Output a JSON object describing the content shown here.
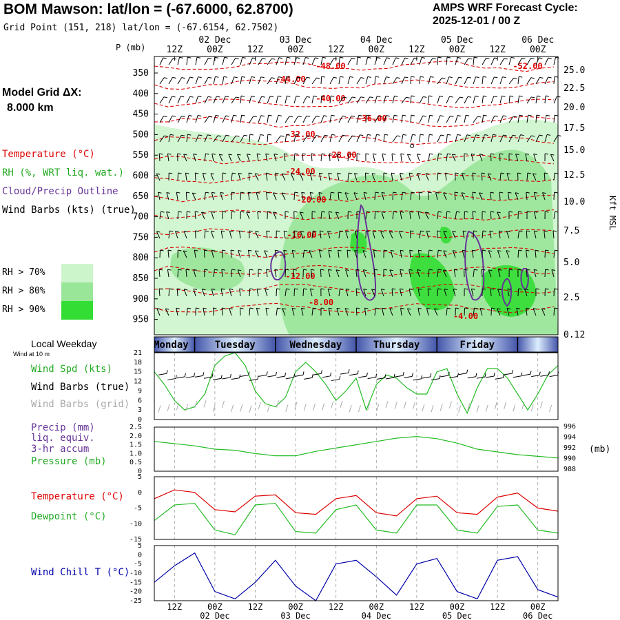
{
  "header": {
    "station_title": "BOM Mawson:  lat/lon = (-67.6000, 62.8700)",
    "grid_point": "Grid Point (151, 218) lat/lon = (-67.6154, 62.7502)",
    "cycle_title": "AMPS WRF Forecast Cycle:",
    "cycle_value": "2025-12-01 / 00  Z",
    "model_grid_label": "Model Grid ΔX:",
    "model_grid_value": "8.000 km"
  },
  "legend": {
    "temperature": "Temperature (°C)",
    "rh": "RH (%, WRT liq. wat.)",
    "cloud": "Cloud/Precip Outline",
    "wind_barbs": "Wind Barbs (kts) (true)",
    "rh70": "RH > 70%",
    "rh80": "RH > 80%",
    "rh90": "RH > 90%",
    "local_weekday": "Local Weekday",
    "wind_10m": "Wind at 10 m",
    "wind_spd": "Wind Spd (kts)",
    "wind_barbs_true": "Wind Barbs (true)",
    "wind_barbs_grid": "Wind Barbs (grid)",
    "precip": "Precip (mm)",
    "precip2": "liq. equiv.",
    "precip3": "3-hr accum",
    "pressure": "Pressure (mb)",
    "temperature2": "Temperature (°C)",
    "dewpoint": "Dewpoint (°C)",
    "windchill": "Wind Chill T (°C)"
  },
  "colors": {
    "temperature": "#dd0000",
    "rh": "#22bb22",
    "cloud": "#663399",
    "grid_barb": "#aaaaaa",
    "wind_chill": "#0000aa",
    "rh70": "#ccf5cc",
    "rh80": "#99e699",
    "rh90": "#33dd33",
    "weekday_bar": "#4455aa"
  },
  "chart_data": [
    {
      "type": "contour",
      "name": "cross-section",
      "p_label": "P (mb)",
      "right_label": "Kft MSL",
      "pressure_ticks": [
        "350",
        "400",
        "450",
        "500",
        "550",
        "600",
        "650",
        "700",
        "750",
        "800",
        "850",
        "900",
        "950"
      ],
      "height_ticks": [
        "25.0",
        "22.5",
        "20.0",
        "17.5",
        "15.0",
        "12.5",
        "10.0",
        "7.5",
        "5.0",
        "2.5",
        "0.12"
      ],
      "time_ticks_top": [
        "12Z",
        "00Z",
        "12Z",
        "00Z",
        "12Z",
        "00Z",
        "12Z",
        "00Z",
        "12Z",
        "00Z"
      ],
      "date_ticks": [
        "02 Dec",
        "03 Dec",
        "04 Dec",
        "05 Dec",
        "06 Dec"
      ],
      "temperature_labels": [
        "-48.00",
        "-52.00",
        "-44.00",
        "-40.00",
        "-36.00",
        "-32.00",
        "-28.00",
        "-24.00",
        "-20.00",
        "-16.00",
        "-12.00",
        "-8.00",
        "-4.00"
      ],
      "weekdays": [
        "Monday",
        "Tuesday",
        "Wednesday",
        "Thursday",
        "Friday"
      ]
    },
    {
      "type": "line",
      "name": "wind-speed",
      "x_hours": [
        0,
        3,
        6,
        9,
        12,
        15,
        18,
        21,
        24,
        27,
        30,
        33,
        36,
        39,
        42,
        45,
        48,
        51,
        54,
        57,
        60,
        63,
        66,
        69,
        72,
        75,
        78,
        81,
        84,
        87,
        90,
        93,
        96,
        99,
        102,
        105,
        108,
        111,
        114,
        117,
        120
      ],
      "series": [
        {
          "name": "Wind Spd (kts)",
          "values": [
            15,
            11,
            6,
            3,
            4,
            8,
            17,
            20,
            21,
            17,
            9,
            5,
            4,
            7,
            15,
            18,
            15,
            11,
            6,
            9,
            13,
            3,
            11,
            14,
            13,
            10,
            8,
            8,
            15,
            16,
            8,
            2,
            10,
            16,
            16,
            13,
            8,
            3,
            8,
            14,
            17
          ]
        }
      ],
      "y_ticks": [
        "21",
        "18",
        "15",
        "12",
        "9",
        "6",
        "3",
        "0"
      ],
      "ylim": [
        0,
        21
      ]
    },
    {
      "type": "line",
      "name": "pressure",
      "x_hours": [
        0,
        6,
        12,
        18,
        24,
        30,
        36,
        42,
        48,
        54,
        60,
        66,
        72,
        78,
        84,
        90,
        96,
        102,
        108,
        114,
        120
      ],
      "series": [
        {
          "name": "Pressure (mb)",
          "values": [
            993.4,
            993.0,
            992.6,
            992.0,
            991.8,
            991.2,
            990.8,
            990.8,
            991.6,
            992.2,
            992.8,
            993.4,
            994.0,
            994.3,
            993.9,
            993.1,
            992.0,
            991.5,
            991.0,
            990.7,
            990.4
          ]
        }
      ],
      "y_ticks_left": [
        "2.5",
        "2.0",
        "1.5",
        "1.0",
        "0.5",
        "0"
      ],
      "y_ticks_right": [
        "996",
        "994",
        "992",
        "990",
        "988"
      ],
      "right_unit": "(mb)",
      "ylim": [
        988,
        996
      ]
    },
    {
      "type": "line",
      "name": "temperature-dewpoint",
      "x_hours": [
        0,
        6,
        12,
        18,
        24,
        30,
        36,
        42,
        48,
        54,
        60,
        66,
        72,
        78,
        84,
        90,
        96,
        102,
        108,
        114,
        120
      ],
      "series": [
        {
          "name": "Temperature (°C)",
          "values": [
            -2,
            0.8,
            0,
            -5.5,
            -6.2,
            -1.2,
            -0.8,
            -6.5,
            -7.0,
            -2,
            -1,
            -6.5,
            -7.5,
            -2,
            -1.2,
            -6.5,
            -7.0,
            -1.5,
            -0.2,
            -5.0,
            -6.0
          ]
        },
        {
          "name": "Dewpoint (°C)",
          "values": [
            -9,
            -4,
            -3.5,
            -12,
            -13.5,
            -4,
            -3.5,
            -12.5,
            -13,
            -5.5,
            -4,
            -12,
            -13,
            -4,
            -4,
            -12,
            -13,
            -4.5,
            -4,
            -12,
            -13
          ]
        }
      ],
      "y_ticks": [
        "5",
        "0",
        "-5",
        "-10",
        "-15"
      ],
      "ylim": [
        -15,
        5
      ]
    },
    {
      "type": "line",
      "name": "wind-chill",
      "x_hours": [
        0,
        6,
        12,
        18,
        24,
        30,
        36,
        42,
        48,
        54,
        60,
        66,
        72,
        78,
        84,
        90,
        96,
        102,
        108,
        114,
        120
      ],
      "series": [
        {
          "name": "Wind Chill T (°C)",
          "values": [
            -15,
            -6,
            1,
            -20,
            -24,
            -15,
            -3,
            -17,
            -25,
            -5,
            -3,
            -12,
            -22,
            -5,
            -2,
            -20,
            -24,
            -3,
            -1,
            -19,
            -23
          ]
        }
      ],
      "y_ticks": [
        "5",
        "0",
        "-5",
        "-10",
        "-15",
        "-20",
        "-25"
      ],
      "ylim": [
        -25,
        5
      ],
      "time_ticks_bottom": [
        "12Z",
        "00Z",
        "12Z",
        "00Z",
        "12Z",
        "00Z",
        "12Z",
        "00Z",
        "12Z",
        "00Z"
      ],
      "date_ticks_bottom": [
        "02 Dec",
        "03 Dec",
        "04 Dec",
        "05 Dec",
        "06 Dec"
      ]
    }
  ]
}
